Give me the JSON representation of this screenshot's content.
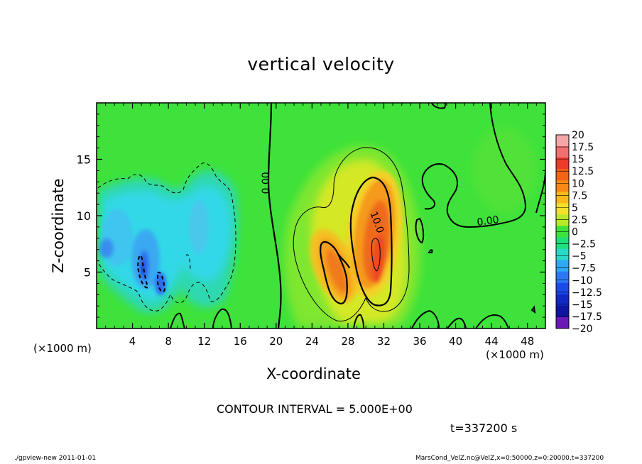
{
  "chart_data": {
    "type": "heatmap",
    "title": "vertical velocity",
    "xlabel": "X-coordinate",
    "ylabel": "Z-coordinate",
    "x_unit_left": "(×1000 m)",
    "x_unit_right": "(×1000 m)",
    "xlim": [
      0,
      50
    ],
    "ylim": [
      0,
      20
    ],
    "x_ticks": [
      4,
      8,
      12,
      16,
      20,
      24,
      28,
      32,
      36,
      40,
      44,
      48
    ],
    "y_ticks": [
      5,
      10,
      15
    ],
    "colorbar": {
      "labels": [
        "20",
        "17.5",
        "15",
        "12.5",
        "10",
        "7.5",
        "5",
        "2.5",
        "0",
        "−2.5",
        "−5",
        "−7.5",
        "−10",
        "−12.5",
        "−15",
        "−17.5",
        "−20"
      ],
      "colors": [
        "#f5a6a6",
        "#f07070",
        "#ee3a2a",
        "#f26418",
        "#f68a14",
        "#fbb81a",
        "#f4e028",
        "#b8ea28",
        "#3ee23a",
        "#1ee07a",
        "#2ad8c8",
        "#30a8f4",
        "#2a78f4",
        "#1a4ae8",
        "#1228c4",
        "#0e14a0",
        "#6a1ab4"
      ]
    },
    "contour_labels": [
      {
        "text": "0.00",
        "x": 18.9,
        "z": 12.9,
        "angle": -90
      },
      {
        "text": "10.0",
        "x": 31.2,
        "z": 9.4,
        "angle": 70
      },
      {
        "text": "0.00",
        "x": 43.6,
        "z": 9.5,
        "angle": -8
      }
    ],
    "contour_interval": "CONTOUR INTERVAL = 5.000E+00",
    "time": "t=337200 s"
  },
  "footer": {
    "left": "./gpview-new  2011-01-01",
    "right": "MarsCond_VelZ.nc@VelZ,x=0:50000,z=0:20000,t=337200"
  }
}
